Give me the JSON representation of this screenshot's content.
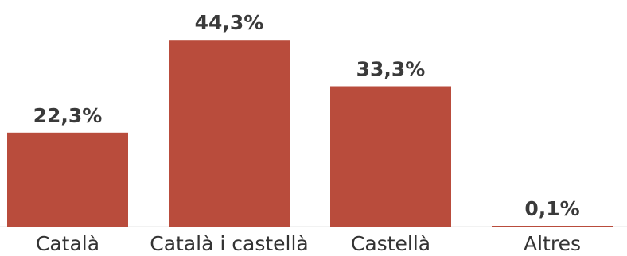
{
  "chart_data": {
    "type": "bar",
    "categories": [
      "Català",
      "Català i castellà",
      "Castellà",
      "Altres"
    ],
    "values": [
      22.3,
      44.3,
      33.3,
      0.1
    ],
    "value_labels": [
      "22,3%",
      "44,3%",
      "33,3%",
      "0,1%"
    ],
    "title": "",
    "xlabel": "",
    "ylabel": "",
    "ylim": [
      0,
      50
    ],
    "grid": false,
    "legend": "none",
    "colors": {
      "bar": "#b94c3c",
      "baseline": "#e6e6e6"
    }
  }
}
